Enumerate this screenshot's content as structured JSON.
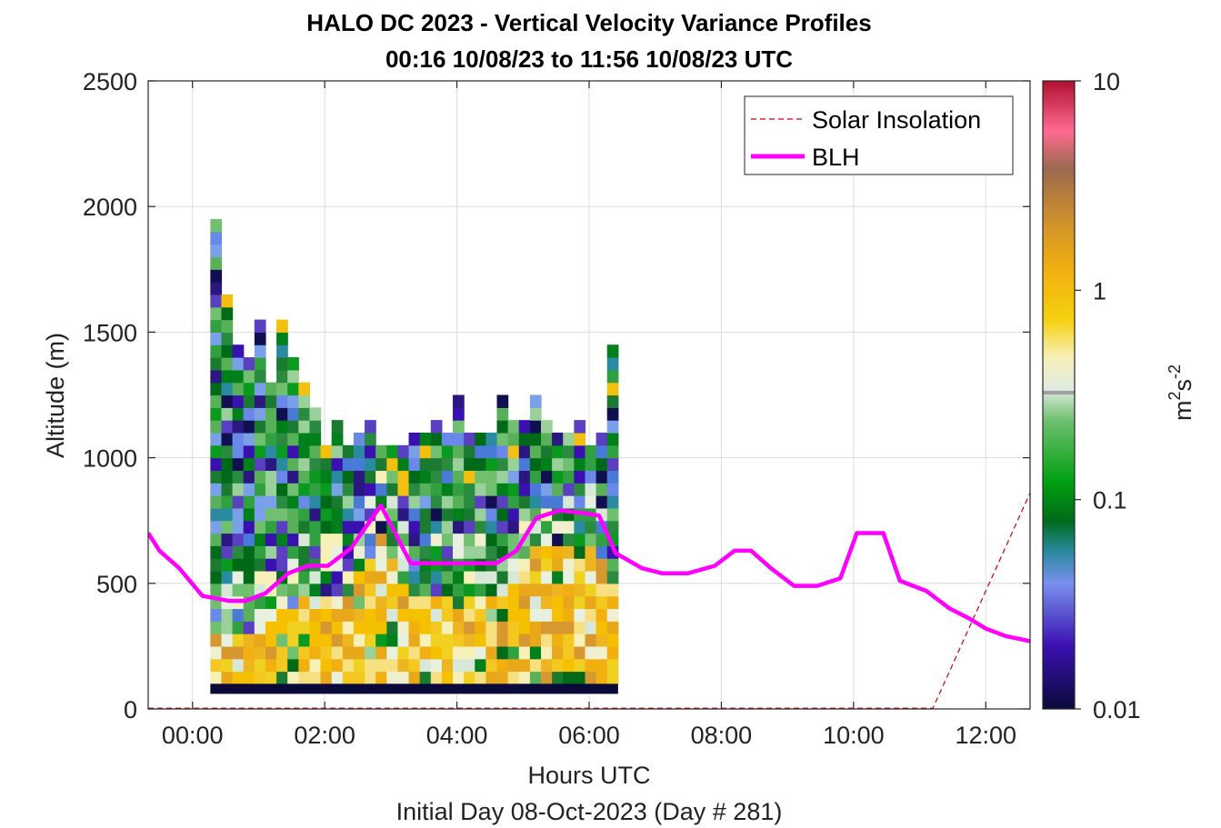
{
  "chart_data": {
    "type": "heatmap",
    "title": "HALO DC 2023 - Vertical Velocity Variance Profiles",
    "subtitle": "00:16 10/08/23 to 11:56 10/08/23  UTC",
    "xlabel": "Hours UTC",
    "xlabel2": "Initial Day 08-Oct-2023 (Day # 281)",
    "ylabel": "Altitude (m)",
    "xlim": [
      -0.67,
      12.67
    ],
    "ylim": [
      0,
      2500
    ],
    "x_ticks": [
      0,
      2,
      4,
      6,
      8,
      10,
      12
    ],
    "x_tick_labels": [
      "00:00",
      "02:00",
      "04:00",
      "06:00",
      "08:00",
      "10:00",
      "12:00"
    ],
    "y_ticks": [
      0,
      500,
      1000,
      1500,
      2000,
      2500
    ],
    "y_tick_labels": [
      "0",
      "500",
      "1000",
      "1500",
      "2000",
      "2500"
    ],
    "grid": true,
    "legend_position": "top-right",
    "legend": [
      {
        "label": "Solar Insolation",
        "color": "#cc0000",
        "style": "dashed"
      },
      {
        "label": "BLH",
        "color": "#ff00ff",
        "style": "solid"
      }
    ],
    "colorbar": {
      "scale": "log",
      "min": 0.01,
      "max": 10,
      "tick_values": [
        0.01,
        0.1,
        1,
        10
      ],
      "tick_labels": [
        "0.01",
        "0.1",
        "1",
        "10"
      ],
      "label_base": "m",
      "label_exp1": "2",
      "label_mid": "s",
      "label_exp2": "-2"
    },
    "heatmap": {
      "time_start": 0.27,
      "time_step": 0.1667,
      "alt_start": 100,
      "alt_step": 50,
      "column_top_altitudes": [
        1950,
        1650,
        1450,
        1400,
        1550,
        1300,
        1550,
        1400,
        1300,
        1200,
        1050,
        1150,
        1050,
        1100,
        1150,
        1050,
        1050,
        1050,
        1100,
        1100,
        1150,
        1100,
        1250,
        1100,
        1100,
        1100,
        1250,
        1150,
        1150,
        1250,
        1150,
        1100,
        1100,
        1150,
        1050,
        1100,
        1450
      ]
    },
    "blh": {
      "times": [
        -0.67,
        -0.5,
        -0.2,
        0.15,
        0.55,
        0.8,
        1.1,
        1.45,
        1.75,
        2.05,
        2.4,
        2.85,
        3.3,
        3.65,
        4.2,
        4.6,
        4.9,
        5.2,
        5.55,
        5.9,
        6.15,
        6.4,
        6.8,
        7.1,
        7.5,
        7.9,
        8.2,
        8.45,
        8.75,
        9.1,
        9.45,
        9.8,
        10.05,
        10.45,
        10.7,
        11.1,
        11.45,
        11.75,
        12.0,
        12.3,
        12.67
      ],
      "altitudes": [
        700,
        630,
        560,
        450,
        430,
        430,
        460,
        540,
        570,
        570,
        640,
        810,
        580,
        580,
        580,
        580,
        630,
        760,
        790,
        780,
        770,
        620,
        560,
        540,
        540,
        570,
        630,
        630,
        560,
        490,
        490,
        520,
        700,
        700,
        510,
        470,
        400,
        360,
        320,
        290,
        270
      ]
    },
    "solar_insolation": {
      "times": [
        -0.67,
        11.2,
        12.67
      ],
      "altitudes": [
        3,
        3,
        860
      ]
    }
  }
}
